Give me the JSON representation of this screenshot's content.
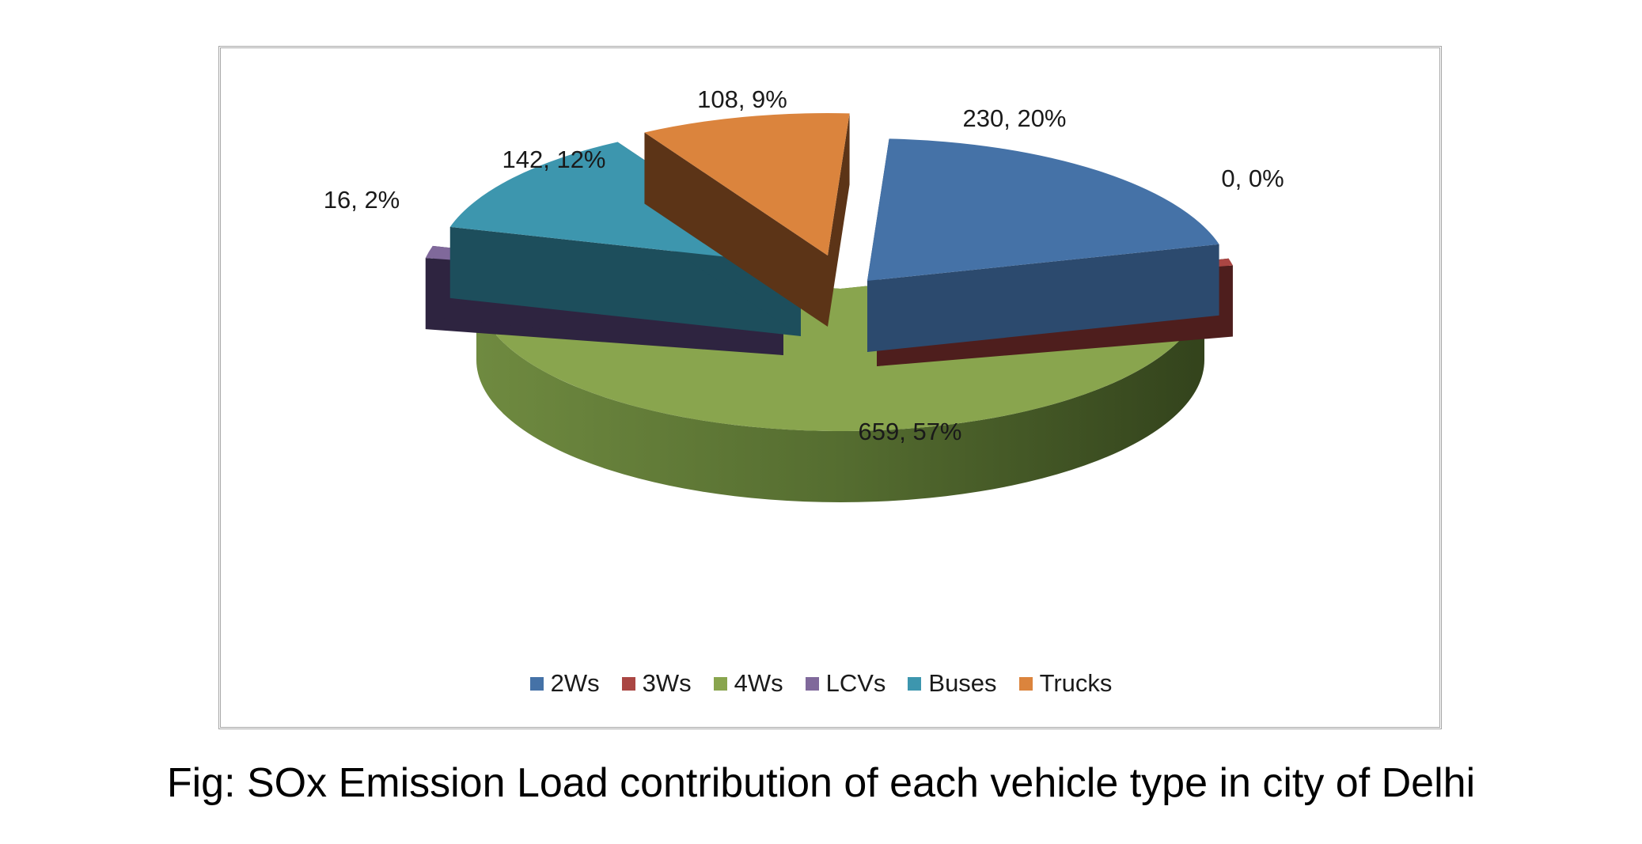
{
  "caption": "Fig: SOx Emission Load contribution of each vehicle type in city of Delhi",
  "chart_data": {
    "type": "pie",
    "style": "3d-exploded",
    "legend_position": "bottom",
    "slices": [
      {
        "name": "2Ws",
        "value": 230,
        "percent": 20,
        "label": "230, 20%",
        "color": "#4572a7",
        "side": "#2c4a6e"
      },
      {
        "name": "3Ws",
        "value": 0,
        "percent": 0,
        "label": "0, 0%",
        "color": "#aa4643",
        "side": "#4e1e1d"
      },
      {
        "name": "4Ws",
        "value": 659,
        "percent": 57,
        "label": "659, 57%",
        "color": "#89a54e",
        "side": "#4f6a2a"
      },
      {
        "name": "LCVs",
        "value": 16,
        "percent": 2,
        "label": "16, 2%",
        "color": "#80699b",
        "side": "#2e2440"
      },
      {
        "name": "Buses",
        "value": 142,
        "percent": 12,
        "label": "142, 12%",
        "color": "#3d96ae",
        "side": "#1d4e5c"
      },
      {
        "name": "Trucks",
        "value": 108,
        "percent": 9,
        "label": "108, 9%",
        "color": "#db843d",
        "side": "#5c3417"
      }
    ]
  }
}
